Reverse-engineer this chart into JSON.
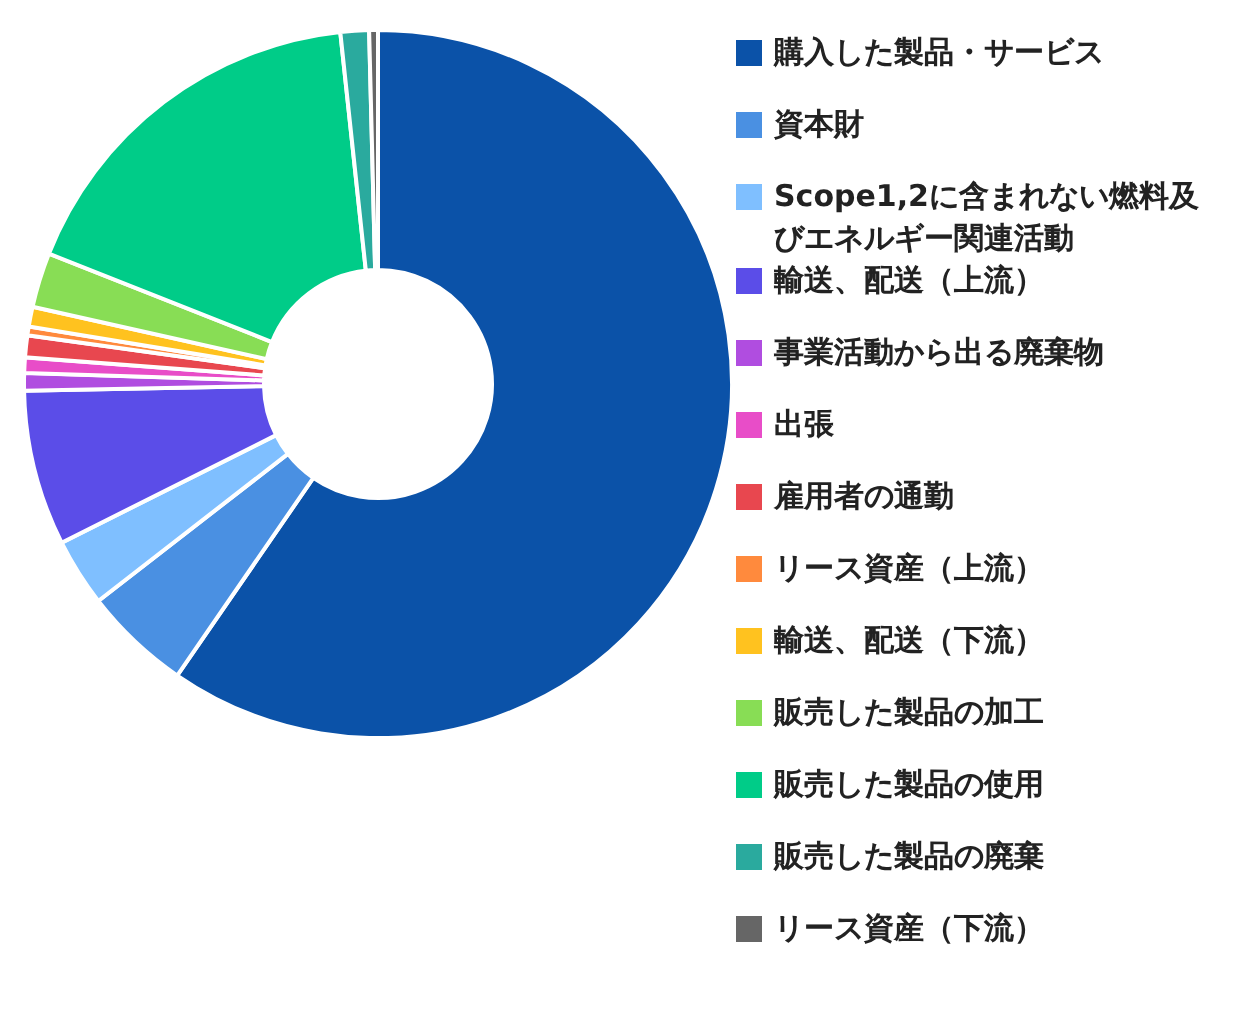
{
  "chart_data": {
    "type": "donut",
    "categories": [
      "購入した製品・サービス",
      "資本財",
      "Scope1,2に含まれない燃料及びエネルギー関連活動",
      "輸送、配送（上流）",
      "事業活動から出る廃棄物",
      "出張",
      "雇用者の通勤",
      "リース資産（上流）",
      "輸送、配送（下流）",
      "販売した製品の加工",
      "販売した製品の使用",
      "販売した製品の廃棄",
      "リース資産（下流）"
    ],
    "values": [
      59.6,
      4.9,
      3.1,
      7.1,
      0.8,
      0.7,
      1.0,
      0.4,
      0.9,
      2.5,
      17.3,
      1.3,
      0.4
    ],
    "colors": [
      "#0b52a8",
      "#4a90e2",
      "#7fbfff",
      "#5b4de8",
      "#b04de0",
      "#e84dc8",
      "#e8474f",
      "#ff8a3d",
      "#ffc21f",
      "#88dd55",
      "#00cc88",
      "#2aaa9e",
      "#666666"
    ],
    "legend": "right"
  }
}
